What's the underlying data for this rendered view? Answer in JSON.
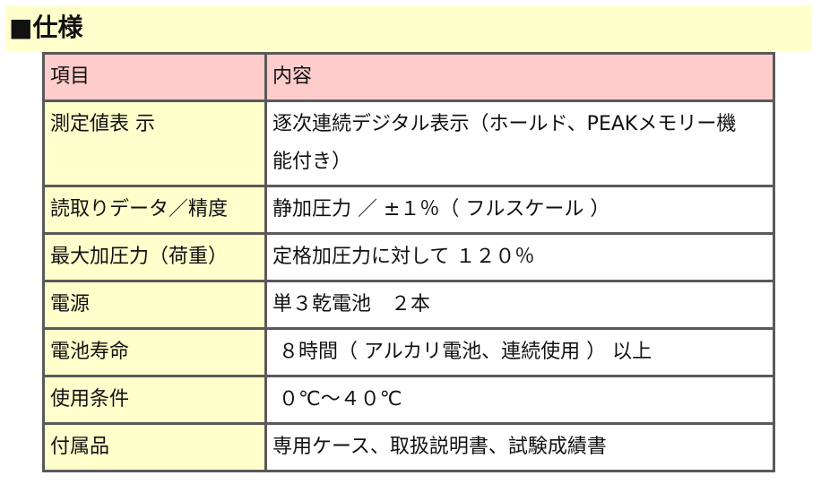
{
  "title": "■仕様",
  "colors": {
    "title_bg": "#ffffcc",
    "header_bg": "#ffcccc",
    "key_bg": "#ffffcc",
    "border": "#5a5a5a"
  },
  "table": {
    "headers": [
      "項目",
      "内容"
    ],
    "rows": [
      {
        "key": "測定値表 示",
        "value": "逐次連続デジタル表示（ホールド、PEAKメモリー機能付き）"
      },
      {
        "key": "読取りデータ／精度",
        "value": "静加圧力 ／ ±１％（ フルスケール ）"
      },
      {
        "key": "最大加圧力（荷重）",
        "value": "定格加圧力に対して １２０％"
      },
      {
        "key": "電源",
        "value": "単３乾電池　２本"
      },
      {
        "key": "電池寿命",
        "value": " ８時間（ アルカリ電池、連続使用 ） 以上"
      },
      {
        "key": "使用条件",
        "value": " ０℃～４０℃"
      },
      {
        "key": "付属品",
        "value": "専用ケース、取扱説明書、試験成績書"
      }
    ]
  }
}
